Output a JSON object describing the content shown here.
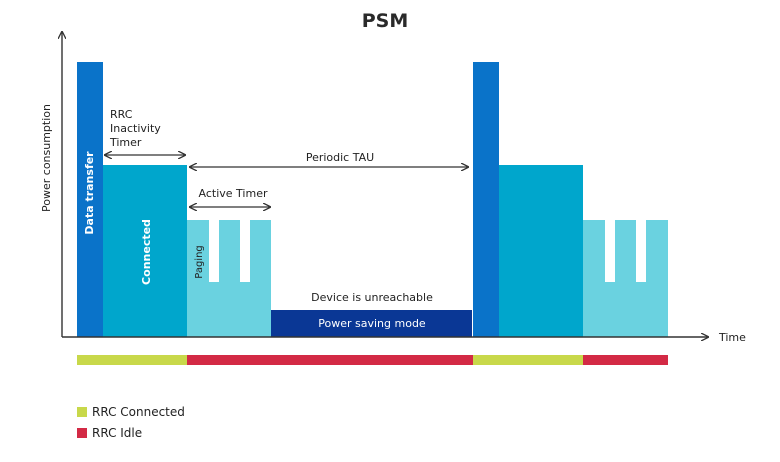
{
  "title": "PSM",
  "axes": {
    "y_label": "Power consumption",
    "x_label": "Time"
  },
  "labels": {
    "data_transfer": "Data transfer",
    "connected": "Connected",
    "paging": "Paging",
    "power_saving_mode": "Power saving mode",
    "device_unreachable": "Device is unreachable",
    "rrc_inactivity_line1": "RRC",
    "rrc_inactivity_line2": "Inactivity",
    "rrc_inactivity_line3": "Timer",
    "periodic_tau": "Periodic TAU",
    "active_timer": "Active Timer"
  },
  "legend": [
    {
      "label": "RRC Connected",
      "color": "#c8d84a"
    },
    {
      "label": "RRC Idle",
      "color": "#d32a45"
    }
  ],
  "colors": {
    "data_transfer": "#0a73c9",
    "connected": "#00a6cc",
    "paging": "#6ad2e0",
    "psm": "#0a3795",
    "axis": "#333333"
  }
}
